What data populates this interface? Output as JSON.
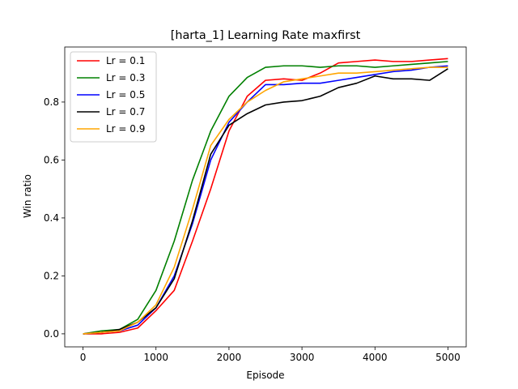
{
  "chart_data": {
    "type": "line",
    "title": "[harta_1] Learning Rate  maxfirst",
    "xlabel": "Episode",
    "ylabel": "Win ratio",
    "xlim": [
      -250,
      5250
    ],
    "ylim": [
      -0.045,
      0.99
    ],
    "xticks": [
      0,
      1000,
      2000,
      3000,
      4000,
      5000
    ],
    "yticks": [
      0.0,
      0.2,
      0.4,
      0.6,
      0.8
    ],
    "xtick_labels": [
      "0",
      "1000",
      "2000",
      "3000",
      "4000",
      "5000"
    ],
    "ytick_labels": [
      "0.0",
      "0.2",
      "0.4",
      "0.6",
      "0.8"
    ],
    "grid": false,
    "legend_position": "top-left",
    "x": [
      0,
      250,
      500,
      750,
      1000,
      1250,
      1500,
      1750,
      2000,
      2250,
      2500,
      2750,
      3000,
      3250,
      3500,
      3750,
      4000,
      4250,
      4500,
      4750,
      5000
    ],
    "series": [
      {
        "name": "Lr = 0.1",
        "color": "#ff0000",
        "values": [
          0.0,
          0.0,
          0.005,
          0.02,
          0.08,
          0.15,
          0.32,
          0.5,
          0.7,
          0.82,
          0.875,
          0.88,
          0.875,
          0.9,
          0.935,
          0.94,
          0.945,
          0.94,
          0.94,
          0.945,
          0.95
        ]
      },
      {
        "name": "Lr = 0.3",
        "color": "#008000",
        "values": [
          0.0,
          0.01,
          0.015,
          0.05,
          0.15,
          0.32,
          0.53,
          0.7,
          0.82,
          0.885,
          0.92,
          0.925,
          0.925,
          0.92,
          0.925,
          0.925,
          0.92,
          0.925,
          0.93,
          0.935,
          0.94
        ]
      },
      {
        "name": "Lr = 0.5",
        "color": "#0000ff",
        "values": [
          0.0,
          0.005,
          0.01,
          0.03,
          0.09,
          0.2,
          0.38,
          0.6,
          0.73,
          0.8,
          0.86,
          0.86,
          0.865,
          0.865,
          0.875,
          0.885,
          0.895,
          0.905,
          0.91,
          0.92,
          0.925
        ]
      },
      {
        "name": "Lr = 0.7",
        "color": "#000000",
        "values": [
          0.0,
          0.005,
          0.015,
          0.04,
          0.09,
          0.19,
          0.39,
          0.62,
          0.72,
          0.76,
          0.79,
          0.8,
          0.805,
          0.82,
          0.85,
          0.865,
          0.89,
          0.88,
          0.88,
          0.875,
          0.915
        ]
      },
      {
        "name": "Lr = 0.9",
        "color": "#ffa500",
        "values": [
          0.0,
          0.005,
          0.01,
          0.04,
          0.1,
          0.23,
          0.43,
          0.65,
          0.74,
          0.8,
          0.84,
          0.87,
          0.88,
          0.89,
          0.9,
          0.9,
          0.905,
          0.91,
          0.915,
          0.92,
          0.92
        ]
      }
    ]
  }
}
